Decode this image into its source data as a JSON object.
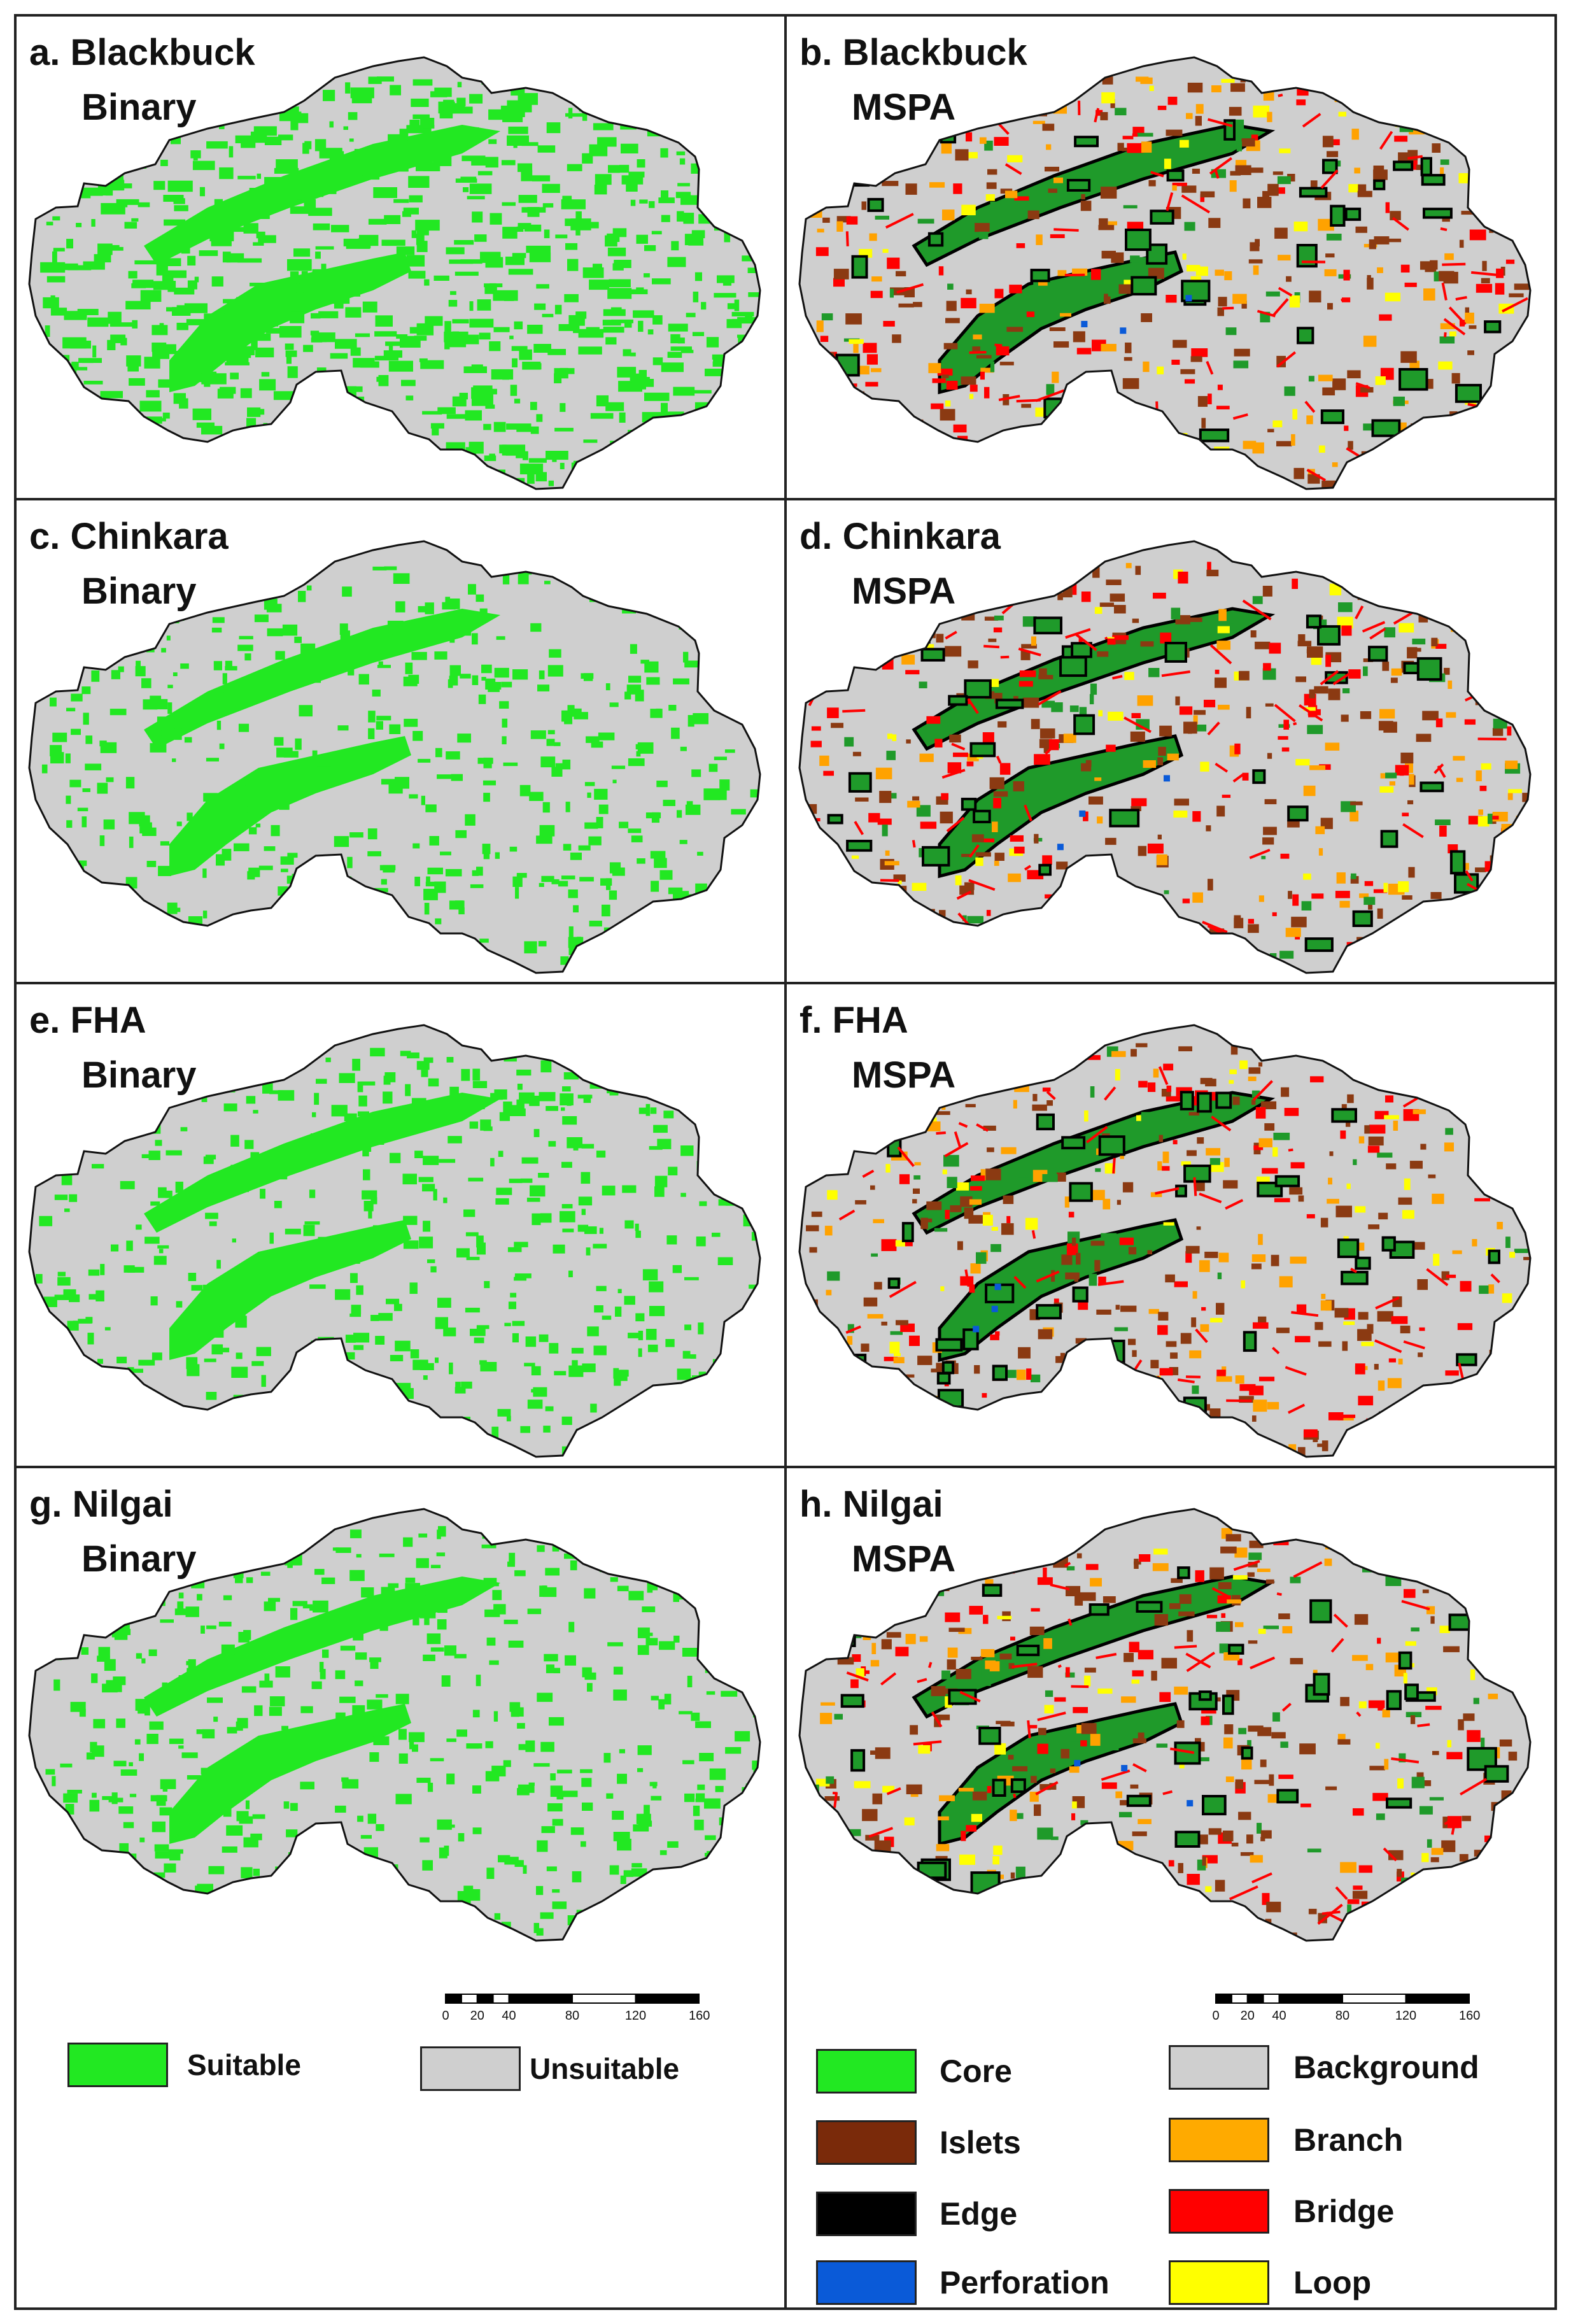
{
  "panels": [
    {
      "id": "a",
      "lines": [
        "a. Blackbuck",
        "Binary"
      ],
      "kind": "binary",
      "seed": 11,
      "suitable_density": "high"
    },
    {
      "id": "b",
      "lines": [
        "b. Blackbuck",
        "MSPA"
      ],
      "kind": "mspa",
      "seed": 12
    },
    {
      "id": "c",
      "lines": [
        "c. Chinkara",
        "Binary"
      ],
      "kind": "binary",
      "seed": 21,
      "suitable_density": "medium"
    },
    {
      "id": "d",
      "lines": [
        "d. Chinkara",
        "MSPA"
      ],
      "kind": "mspa",
      "seed": 22
    },
    {
      "id": "e",
      "lines": [
        "e. FHA",
        "Binary"
      ],
      "kind": "binary",
      "seed": 31,
      "suitable_density": "medium"
    },
    {
      "id": "f",
      "lines": [
        "f. FHA",
        "MSPA"
      ],
      "kind": "mspa",
      "seed": 32
    },
    {
      "id": "g",
      "lines": [
        "g. Nilgai",
        "Binary"
      ],
      "kind": "binary",
      "seed": 41,
      "suitable_density": "medium"
    },
    {
      "id": "h",
      "lines": [
        "h. Nilgai",
        "MSPA"
      ],
      "kind": "mspa",
      "seed": 42
    }
  ],
  "scalebar": {
    "ticks": [
      "0",
      "20",
      "40",
      "80",
      "120",
      "160 km"
    ],
    "tick_values_km": [
      0,
      20,
      40,
      80,
      120,
      160
    ]
  },
  "legend_binary": [
    {
      "label": "Suitable",
      "color": "#22e822"
    },
    {
      "label": "Unsuitable",
      "color": "#cfcfcf"
    }
  ],
  "legend_mspa": [
    {
      "label": "Core",
      "color": "#22e822"
    },
    {
      "label": "Background",
      "color": "#cfcfcf"
    },
    {
      "label": "Islets",
      "color": "#7a2a0a"
    },
    {
      "label": "Branch",
      "color": "#ffaa00"
    },
    {
      "label": "Edge",
      "color": "#000000"
    },
    {
      "label": "Bridge",
      "color": "#ff0000"
    },
    {
      "label": "Perforation",
      "color": "#0a5ad8"
    },
    {
      "label": "Loop",
      "color": "#ffff00"
    }
  ],
  "colors": {
    "suitable": "#22e822",
    "unsuitable": "#cfcfcf",
    "core_map": "#1f9a2a",
    "islets": "#8b3a12",
    "branch": "#ffa200",
    "edge": "#000000",
    "bridge": "#ff0000",
    "perforation": "#0a5ad8",
    "loop": "#ffff00"
  }
}
